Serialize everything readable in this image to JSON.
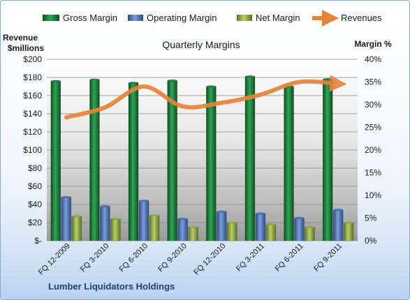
{
  "chart_data": {
    "type": "bar",
    "title": "Quarterly Margins",
    "subtitle": "Lumber Liquidators Holdings",
    "left_axis_title": "Revenue $millions",
    "right_axis_title": "Margin %",
    "categories": [
      "FQ 12-2009",
      "FQ 3-2010",
      "FQ 6-2010",
      "FQ 9-2010",
      "FQ 12-2010",
      "FQ 3-2011",
      "FQ 6-2011",
      "FQ 9-2011"
    ],
    "left_ticks": [
      "$-",
      "$20",
      "$40",
      "$60",
      "$80",
      "$100",
      "$120",
      "$140",
      "$160",
      "$180",
      "$200"
    ],
    "right_ticks": [
      "0%",
      "5%",
      "10%",
      "15%",
      "20%",
      "25%",
      "30%",
      "35%",
      "40%"
    ],
    "ylim_left": [
      0,
      200
    ],
    "ylim_right": [
      0,
      40
    ],
    "grid": true,
    "legend_position": "top",
    "series": [
      {
        "name": "Gross Margin",
        "axis": "right",
        "kind": "bar",
        "color": "#1f7a3a",
        "values": [
          35.2,
          35.5,
          34.8,
          35.3,
          34.0,
          36.2,
          34.0,
          35.6
        ]
      },
      {
        "name": "Operating Margin",
        "axis": "right",
        "kind": "bar",
        "color": "#4a6fb0",
        "values": [
          9.6,
          7.6,
          8.8,
          4.8,
          6.4,
          6.0,
          5.0,
          6.8
        ]
      },
      {
        "name": "Net Margin",
        "axis": "right",
        "kind": "bar",
        "color": "#8faa45",
        "values": [
          5.4,
          4.8,
          5.6,
          3.0,
          4.0,
          3.6,
          3.0,
          4.0
        ]
      },
      {
        "name": "Revenues",
        "axis": "left",
        "kind": "line",
        "color": "#e8823a",
        "values": [
          136,
          147,
          170,
          148,
          152,
          161,
          175,
          173
        ]
      }
    ]
  }
}
